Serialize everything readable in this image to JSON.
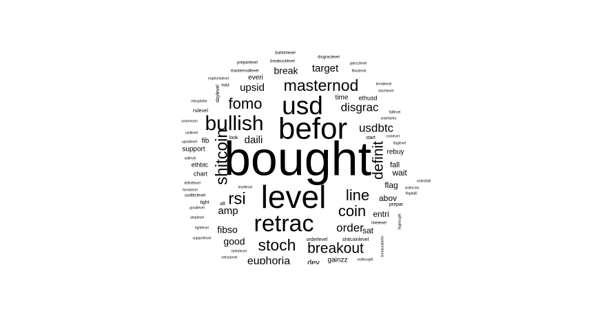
{
  "words": [
    {
      "text": "bought",
      "weight": 100
    },
    {
      "text": "befor",
      "weight": 78
    },
    {
      "text": "level",
      "weight": 76
    },
    {
      "text": "usd",
      "weight": 60
    },
    {
      "text": "retrac",
      "weight": 58
    },
    {
      "text": "bullish",
      "weight": 52
    },
    {
      "text": "masternod",
      "weight": 40
    },
    {
      "text": "stoch",
      "weight": 40
    },
    {
      "text": "shitcoin",
      "weight": 38
    },
    {
      "text": "rsi",
      "weight": 40
    },
    {
      "text": "fomo",
      "weight": 40
    },
    {
      "text": "breakout",
      "weight": 37
    },
    {
      "text": "definit",
      "weight": 37
    },
    {
      "text": "coin",
      "weight": 37
    },
    {
      "text": "line",
      "weight": 35
    },
    {
      "text": "usdbtc",
      "weight": 29
    },
    {
      "text": "disgrac",
      "weight": 29
    },
    {
      "text": "order",
      "weight": 29
    },
    {
      "text": "euphoria",
      "weight": 26
    },
    {
      "text": "target",
      "weight": 25
    },
    {
      "text": "upsid",
      "weight": 22
    },
    {
      "text": "break",
      "weight": 22
    },
    {
      "text": "daili",
      "weight": 24
    },
    {
      "text": "amp",
      "weight": 24
    },
    {
      "text": "fibso",
      "weight": 22
    },
    {
      "text": "good",
      "weight": 22
    },
    {
      "text": "abov",
      "weight": 19
    },
    {
      "text": "entri",
      "weight": 19
    },
    {
      "text": "sat",
      "weight": 19
    },
    {
      "text": "flag",
      "weight": 19
    },
    {
      "text": "wait",
      "weight": 17
    },
    {
      "text": "fall",
      "weight": 15
    },
    {
      "text": "rebuy",
      "weight": 15
    },
    {
      "text": "gainzz",
      "weight": 15
    },
    {
      "text": "dev",
      "weight": 17
    },
    {
      "text": "time",
      "weight": 15
    },
    {
      "text": "everi",
      "weight": 15
    },
    {
      "text": "ethusd",
      "weight": 14
    },
    {
      "text": "support",
      "weight": 14
    },
    {
      "text": "fib",
      "weight": 14
    },
    {
      "text": "ethbtc",
      "weight": 13
    },
    {
      "text": "chart",
      "weight": 13
    },
    {
      "text": "daylevel",
      "weight": 12
    },
    {
      "text": "start",
      "weight": 12
    },
    {
      "text": "look",
      "weight": 11
    },
    {
      "text": "prepar",
      "weight": 11
    },
    {
      "text": "alt",
      "weight": 11
    },
    {
      "text": "tight",
      "weight": 11
    },
    {
      "text": "rsilevel",
      "weight": 11
    },
    {
      "text": "masternodlevel",
      "weight": 10
    },
    {
      "text": "breakoutlevel",
      "weight": 10
    },
    {
      "text": "disgraclevel",
      "weight": 10
    },
    {
      "text": "bullishlevel",
      "weight": 10
    },
    {
      "text": "preparlevel",
      "weight": 9
    },
    {
      "text": "gainzzlevel",
      "weight": 9
    },
    {
      "text": "fibsolevel",
      "weight": 9
    },
    {
      "text": "euphorialevel",
      "weight": 9
    },
    {
      "text": "hold",
      "weight": 9
    },
    {
      "text": "breaklevel",
      "weight": 9
    },
    {
      "text": "stochlevel",
      "weight": 9
    },
    {
      "text": "rebuybefor",
      "weight": 9
    },
    {
      "text": "falllevel",
      "weight": 9
    },
    {
      "text": "soonmoon",
      "weight": 9
    },
    {
      "text": "orderbefor",
      "weight": 9
    },
    {
      "text": "usdlevel",
      "weight": 9
    },
    {
      "text": "coinlevel",
      "weight": 9
    },
    {
      "text": "upsidlevel",
      "weight": 9
    },
    {
      "text": "flaglevel",
      "weight": 9
    },
    {
      "text": "satlevel",
      "weight": 9
    },
    {
      "text": "definitlevel",
      "weight": 9
    },
    {
      "text": "orderdaili",
      "weight": 9
    },
    {
      "text": "levellevel",
      "weight": 9
    },
    {
      "text": "ordercoin",
      "weight": 9
    },
    {
      "text": "fomolevel",
      "weight": 9
    },
    {
      "text": "flagdaili",
      "weight": 9
    },
    {
      "text": "usdbtclevel",
      "weight": 9
    },
    {
      "text": "goodlevel",
      "weight": 9
    },
    {
      "text": "amplevel",
      "weight": 9
    },
    {
      "text": "linelevel",
      "weight": 9
    },
    {
      "text": "lightlevel",
      "weight": 9
    },
    {
      "text": "flagbought",
      "weight": 9
    },
    {
      "text": "supportlevel",
      "weight": 9
    },
    {
      "text": "orderlevel",
      "weight": 9
    },
    {
      "text": "shitcoinlevel",
      "weight": 9
    },
    {
      "text": "breakoutbefor",
      "weight": 9
    },
    {
      "text": "beforlevel",
      "weight": 9
    },
    {
      "text": "retraclevel",
      "weight": 9
    },
    {
      "text": "usdbought",
      "weight": 9
    }
  ]
}
